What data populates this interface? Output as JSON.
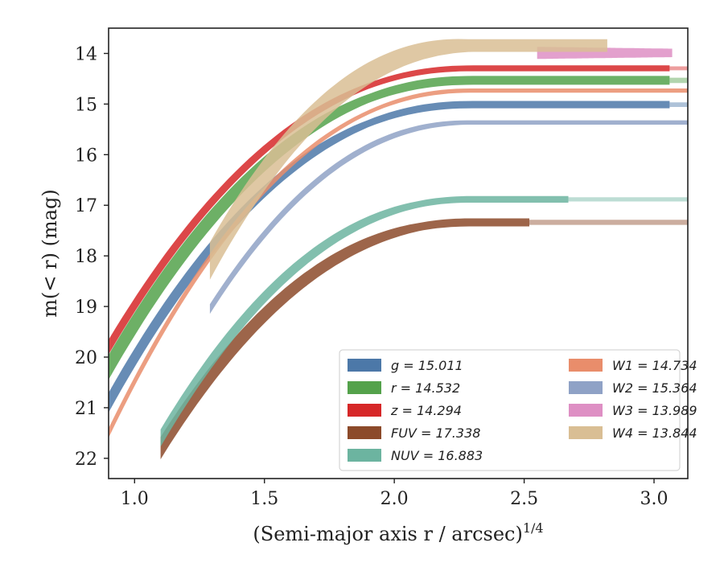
{
  "chart_data": {
    "type": "line",
    "xlabel": "(Semi-major axis r / arcsec)",
    "xlabel_superscript": "1/4",
    "ylabel": "m(< r) (mag)",
    "xlim": [
      0.9,
      3.13
    ],
    "ylim": [
      22.4,
      13.5
    ],
    "y_inverted": true,
    "grid": false,
    "legend_position": "lower-right",
    "legend_columns": 2,
    "x_ticks": [
      "1.0",
      "1.5",
      "2.0",
      "2.5",
      "3.0"
    ],
    "x_tick_values": [
      1.0,
      1.5,
      2.0,
      2.5,
      3.0
    ],
    "y_ticks": [
      "14",
      "15",
      "16",
      "17",
      "18",
      "19",
      "20",
      "21",
      "22"
    ],
    "y_tick_values": [
      14,
      15,
      16,
      17,
      18,
      19,
      20,
      21,
      22
    ],
    "series": [
      {
        "name": "g",
        "label": "g = 15.011",
        "color": "#4c78a8",
        "start": 0.9,
        "startMag": 20.9,
        "final": 15.011,
        "end": 3.06,
        "faint": 3.13,
        "width": 0.35
      },
      {
        "name": "r",
        "label": "r = 14.532",
        "color": "#54a24b",
        "start": 0.9,
        "startMag": 20.2,
        "final": 14.532,
        "end": 3.06,
        "faint": 3.13,
        "width": 0.45
      },
      {
        "name": "z",
        "label": "z = 14.294",
        "color": "#d62728",
        "start": 0.9,
        "startMag": 19.8,
        "final": 14.294,
        "end": 3.06,
        "faint": 3.13,
        "width": 0.25
      },
      {
        "name": "FUV",
        "label": "FUV = 17.338",
        "color": "#8c4a2a",
        "start": 1.1,
        "startMag": 21.8,
        "final": 17.338,
        "end": 2.52,
        "faint": 3.13,
        "width": 0.4
      },
      {
        "name": "NUV",
        "label": "NUV = 16.883",
        "color": "#6cb4a0",
        "start": 1.1,
        "startMag": 21.6,
        "final": 16.883,
        "end": 2.67,
        "faint": 3.13,
        "width": 0.3
      },
      {
        "name": "W1",
        "label": "W1 = 14.734",
        "color": "#e98d6b",
        "start": 0.9,
        "startMag": 21.5,
        "final": 14.734,
        "end": 3.13,
        "faint": 3.13,
        "width": 0.15
      },
      {
        "name": "W2",
        "label": "W2 = 15.364",
        "color": "#8fa2c6",
        "start": 1.29,
        "startMag": 19.05,
        "final": 15.364,
        "end": 3.13,
        "faint": 3.13,
        "width": 0.15
      },
      {
        "name": "W3",
        "label": "W3 = 13.989",
        "color": "#de8fc4",
        "start": 2.55,
        "startMag": 14.2,
        "final": 13.989,
        "end": 3.07,
        "faint": 3.07,
        "width": 0.2
      },
      {
        "name": "W4",
        "label": "W4 = 13.844",
        "color": "#d9be94",
        "start": 1.29,
        "startMag": 18.1,
        "final": 13.844,
        "end": 2.82,
        "faint": 2.82,
        "width": 0.7
      }
    ]
  }
}
